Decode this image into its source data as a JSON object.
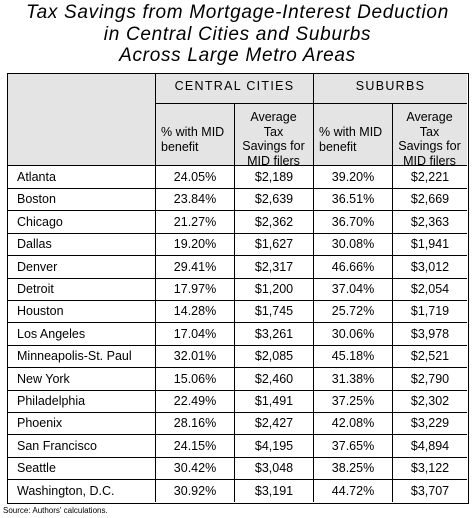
{
  "chart_data": {
    "type": "table",
    "title_lines": [
      "Tax Savings from Mortgage-Interest Deduction",
      "in Central Cities and Suburbs",
      "Across Large Metro Areas"
    ],
    "groups": [
      "CENTRAL CITIES",
      "SUBURBS"
    ],
    "columns": [
      [
        "% with MID",
        "benefit"
      ],
      [
        "Average",
        "Tax",
        "Savings for",
        "MID filers"
      ],
      [
        "% with MID",
        "benefit"
      ],
      [
        "Average",
        "Tax",
        "Savings for",
        "MID filers"
      ]
    ],
    "rows": [
      {
        "city": "Atlanta",
        "cc_pct": "24.05%",
        "cc_sav": "$2,189",
        "sub_pct": "39.20%",
        "sub_sav": "$2,221"
      },
      {
        "city": "Boston",
        "cc_pct": "23.84%",
        "cc_sav": "$2,639",
        "sub_pct": "36.51%",
        "sub_sav": "$2,669"
      },
      {
        "city": "Chicago",
        "cc_pct": "21.27%",
        "cc_sav": "$2,362",
        "sub_pct": "36.70%",
        "sub_sav": "$2,363"
      },
      {
        "city": "Dallas",
        "cc_pct": "19.20%",
        "cc_sav": "$1,627",
        "sub_pct": "30.08%",
        "sub_sav": "$1,941"
      },
      {
        "city": "Denver",
        "cc_pct": "29.41%",
        "cc_sav": "$2,317",
        "sub_pct": "46.66%",
        "sub_sav": "$3,012"
      },
      {
        "city": "Detroit",
        "cc_pct": "17.97%",
        "cc_sav": "$1,200",
        "sub_pct": "37.04%",
        "sub_sav": "$2,054"
      },
      {
        "city": "Houston",
        "cc_pct": "14.28%",
        "cc_sav": "$1,745",
        "sub_pct": "25.72%",
        "sub_sav": "$1,719"
      },
      {
        "city": "Los Angeles",
        "cc_pct": "17.04%",
        "cc_sav": "$3,261",
        "sub_pct": "30.06%",
        "sub_sav": "$3,978"
      },
      {
        "city": "Minneapolis-St. Paul",
        "cc_pct": "32.01%",
        "cc_sav": "$2,085",
        "sub_pct": "45.18%",
        "sub_sav": "$2,521"
      },
      {
        "city": "New York",
        "cc_pct": "15.06%",
        "cc_sav": "$2,460",
        "sub_pct": "31.38%",
        "sub_sav": "$2,790"
      },
      {
        "city": "Philadelphia",
        "cc_pct": "22.49%",
        "cc_sav": "$1,491",
        "sub_pct": "37.25%",
        "sub_sav": "$2,302"
      },
      {
        "city": "Phoenix",
        "cc_pct": "28.16%",
        "cc_sav": "$2,427",
        "sub_pct": "42.08%",
        "sub_sav": "$3,229"
      },
      {
        "city": "San Francisco",
        "cc_pct": "24.15%",
        "cc_sav": "$4,195",
        "sub_pct": "37.65%",
        "sub_sav": "$4,894"
      },
      {
        "city": "Seattle",
        "cc_pct": "30.42%",
        "cc_sav": "$3,048",
        "sub_pct": "38.25%",
        "sub_sav": "$3,122"
      },
      {
        "city": "Washington, D.C.",
        "cc_pct": "30.92%",
        "cc_sav": "$3,191",
        "sub_pct": "44.72%",
        "sub_sav": "$3,707"
      }
    ],
    "source": "Source: Authors' calculations."
  }
}
